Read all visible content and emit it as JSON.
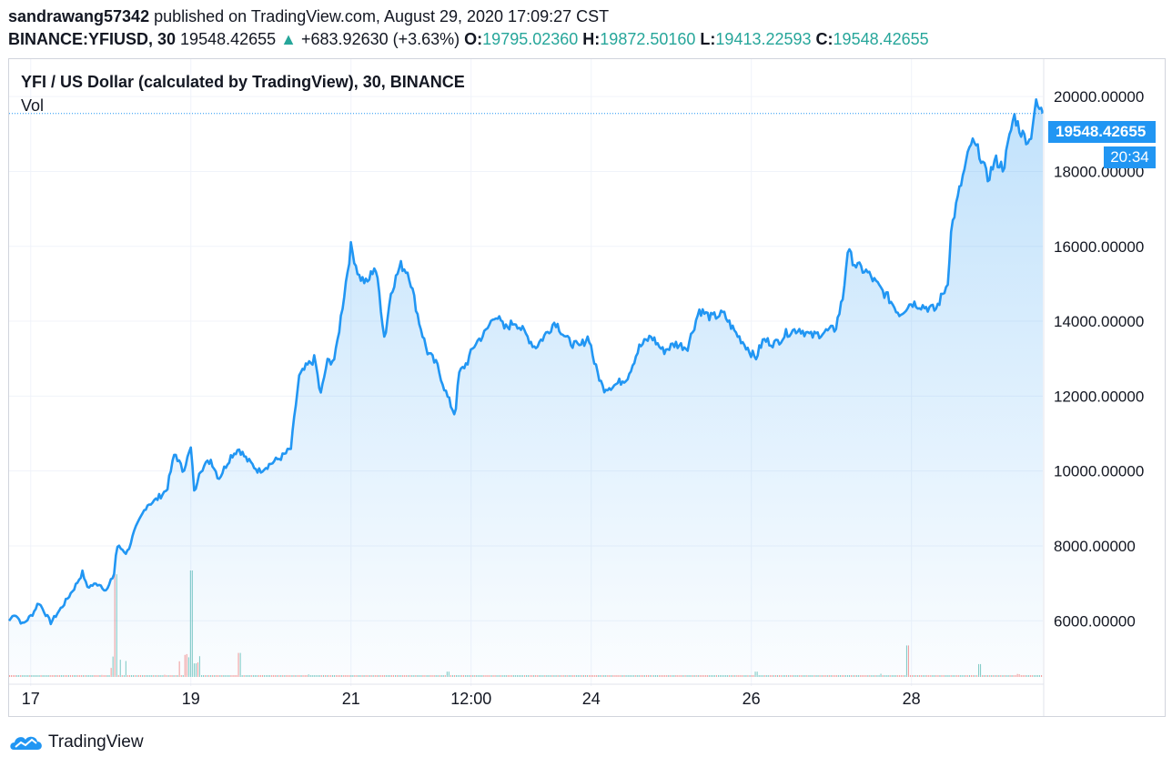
{
  "header": {
    "author": "sandrawang57342",
    "published_text": "published on TradingView.com, August 29, 2020 17:09:27 CST",
    "symbol": "BINANCE:YFIUSD, 30",
    "last": "19548.42655",
    "change_arrow": "▲",
    "change": "+683.92630 (+3.63%)",
    "open_label": "O:",
    "open": "19795.02360",
    "high_label": "H:",
    "high": "19872.50160",
    "low_label": "L:",
    "low": "19413.22593",
    "close_label": "C:",
    "close": "19548.42655"
  },
  "legend": {
    "title": "YFI / US Dollar (calculated by TradingView), 30, BINANCE",
    "vol_label": "Vol"
  },
  "price_tag": {
    "value": "19548.42655",
    "countdown": "20:34"
  },
  "footer": {
    "brand": "TradingView"
  },
  "colors": {
    "line": "#2196f3",
    "up": "#26a69a",
    "down": "#ef5350",
    "grid": "#f0f3fa",
    "tag": "#2196f3"
  },
  "chart_data": {
    "type": "area",
    "y_tick_labels": [
      "20000.00000",
      "18000.00000",
      "16000.00000",
      "14000.00000",
      "12000.00000",
      "10000.00000",
      "8000.00000",
      "6000.00000"
    ],
    "y_ticks": [
      20000,
      18000,
      16000,
      14000,
      12000,
      10000,
      8000,
      6000
    ],
    "ylim": [
      4500,
      21000
    ],
    "x_ticks": [
      {
        "t": 0,
        "label": "17"
      },
      {
        "t": 2,
        "label": "19"
      },
      {
        "t": 4,
        "label": "21"
      },
      {
        "t": 5.5,
        "label": "12:00"
      },
      {
        "t": 7,
        "label": "24"
      },
      {
        "t": 9,
        "label": "26"
      },
      {
        "t": 11,
        "label": "28"
      }
    ],
    "xlim": [
      -0.27,
      12.64
    ],
    "price_anchors": [
      [
        -0.27,
        6000
      ],
      [
        -0.2,
        6200
      ],
      [
        -0.1,
        5900
      ],
      [
        0.03,
        6200
      ],
      [
        0.1,
        6500
      ],
      [
        0.25,
        5950
      ],
      [
        0.4,
        6400
      ],
      [
        0.55,
        6900
      ],
      [
        0.65,
        7300
      ],
      [
        0.7,
        6900
      ],
      [
        0.85,
        7000
      ],
      [
        0.95,
        6800
      ],
      [
        1.05,
        7300
      ],
      [
        1.07,
        8000
      ],
      [
        1.15,
        7900
      ],
      [
        1.2,
        7800
      ],
      [
        1.3,
        8400
      ],
      [
        1.45,
        9100
      ],
      [
        1.55,
        9200
      ],
      [
        1.7,
        9500
      ],
      [
        1.8,
        10500
      ],
      [
        1.9,
        10000
      ],
      [
        2.0,
        10600
      ],
      [
        2.05,
        9300
      ],
      [
        2.1,
        10000
      ],
      [
        2.25,
        10300
      ],
      [
        2.35,
        9800
      ],
      [
        2.5,
        10400
      ],
      [
        2.6,
        10600
      ],
      [
        2.7,
        10300
      ],
      [
        2.85,
        10000
      ],
      [
        3.0,
        10200
      ],
      [
        3.15,
        10400
      ],
      [
        3.25,
        10600
      ],
      [
        3.35,
        12500
      ],
      [
        3.45,
        12800
      ],
      [
        3.55,
        13000
      ],
      [
        3.62,
        12000
      ],
      [
        3.7,
        12900
      ],
      [
        3.8,
        13000
      ],
      [
        3.9,
        14500
      ],
      [
        4.0,
        16000
      ],
      [
        4.1,
        15200
      ],
      [
        4.2,
        15000
      ],
      [
        4.3,
        15500
      ],
      [
        4.35,
        14800
      ],
      [
        4.42,
        13500
      ],
      [
        4.5,
        14800
      ],
      [
        4.62,
        15500
      ],
      [
        4.72,
        15300
      ],
      [
        4.85,
        14000
      ],
      [
        4.95,
        13200
      ],
      [
        5.08,
        12800
      ],
      [
        5.2,
        12000
      ],
      [
        5.3,
        11500
      ],
      [
        5.35,
        12600
      ],
      [
        5.45,
        12900
      ],
      [
        5.55,
        13400
      ],
      [
        5.68,
        13700
      ],
      [
        5.8,
        14200
      ],
      [
        5.92,
        13800
      ],
      [
        6.05,
        14000
      ],
      [
        6.2,
        13600
      ],
      [
        6.3,
        13300
      ],
      [
        6.45,
        13700
      ],
      [
        6.55,
        14000
      ],
      [
        6.7,
        13500
      ],
      [
        6.85,
        13300
      ],
      [
        6.97,
        13600
      ],
      [
        7.05,
        12800
      ],
      [
        7.15,
        12200
      ],
      [
        7.3,
        12300
      ],
      [
        7.45,
        12500
      ],
      [
        7.6,
        13300
      ],
      [
        7.75,
        13600
      ],
      [
        7.9,
        13200
      ],
      [
        8.05,
        13400
      ],
      [
        8.2,
        13300
      ],
      [
        8.35,
        14300
      ],
      [
        8.5,
        14100
      ],
      [
        8.65,
        14200
      ],
      [
        8.8,
        13700
      ],
      [
        8.95,
        13300
      ],
      [
        9.05,
        13000
      ],
      [
        9.15,
        13500
      ],
      [
        9.3,
        13400
      ],
      [
        9.45,
        13700
      ],
      [
        9.6,
        13800
      ],
      [
        9.75,
        13600
      ],
      [
        9.9,
        13700
      ],
      [
        10.05,
        13800
      ],
      [
        10.15,
        14700
      ],
      [
        10.2,
        15900
      ],
      [
        10.3,
        15500
      ],
      [
        10.45,
        15300
      ],
      [
        10.6,
        14900
      ],
      [
        10.72,
        14600
      ],
      [
        10.85,
        14200
      ],
      [
        11.0,
        14500
      ],
      [
        11.15,
        14400
      ],
      [
        11.3,
        14300
      ],
      [
        11.45,
        15000
      ],
      [
        11.5,
        16500
      ],
      [
        11.6,
        17500
      ],
      [
        11.75,
        18800
      ],
      [
        11.85,
        18500
      ],
      [
        11.95,
        17800
      ],
      [
        12.05,
        18300
      ],
      [
        12.15,
        18100
      ],
      [
        12.28,
        19500
      ],
      [
        12.38,
        19000
      ],
      [
        12.48,
        18800
      ],
      [
        12.55,
        19800
      ],
      [
        12.64,
        19548
      ]
    ],
    "last_price": 19548.42655,
    "volume_peaks": [
      [
        1.05,
        8700
      ],
      [
        2.0,
        8800
      ],
      [
        2.6,
        6600
      ],
      [
        5.2,
        6100
      ],
      [
        9.05,
        6100
      ],
      [
        10.95,
        6800
      ],
      [
        11.85,
        6300
      ],
      [
        12.0,
        5700
      ],
      [
        3.9,
        5700
      ],
      [
        4.5,
        5300
      ]
    ]
  }
}
